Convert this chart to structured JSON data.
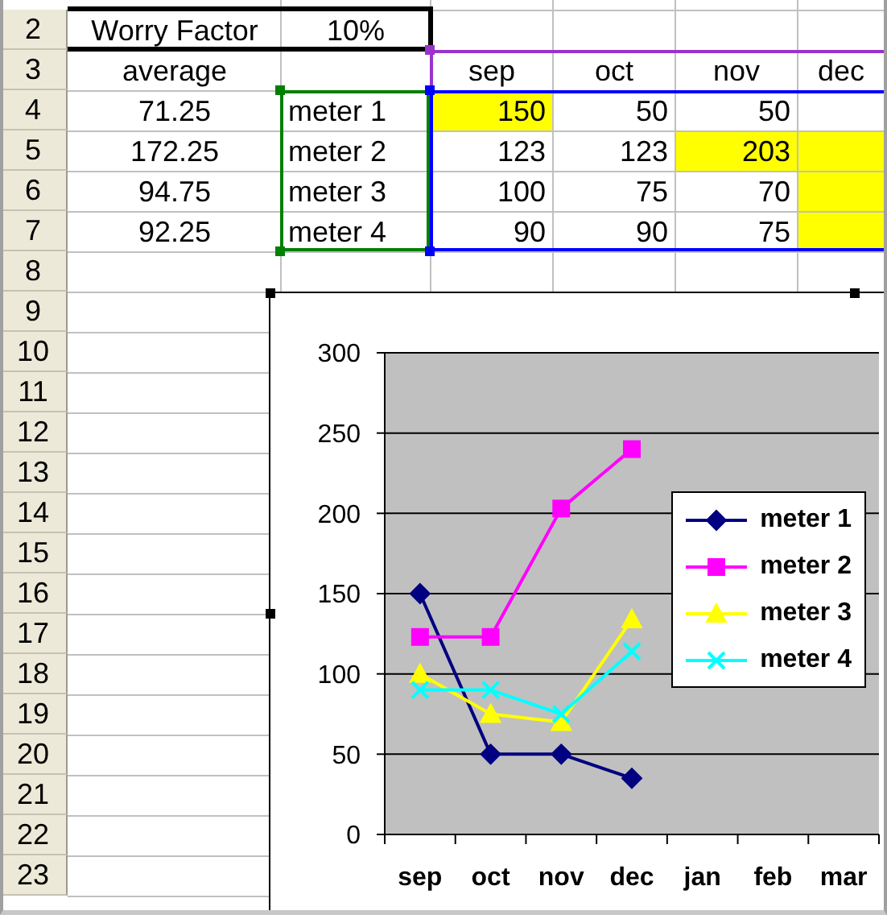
{
  "chart_data": {
    "type": "line",
    "categories": [
      "sep",
      "oct",
      "nov",
      "dec",
      "jan",
      "feb",
      "mar"
    ],
    "series": [
      {
        "name": "meter 1",
        "color": "#000080",
        "marker": "diamond",
        "values": [
          150,
          50,
          50,
          35,
          null,
          null,
          null
        ]
      },
      {
        "name": "meter 2",
        "color": "#ff00ff",
        "marker": "square",
        "values": [
          123,
          123,
          203,
          240,
          null,
          null,
          null
        ]
      },
      {
        "name": "meter 3",
        "color": "#ffff00",
        "marker": "triangle",
        "values": [
          100,
          75,
          70,
          134,
          null,
          null,
          null
        ]
      },
      {
        "name": "meter 4",
        "color": "#00ffff",
        "marker": "cross",
        "values": [
          90,
          90,
          75,
          114,
          null,
          null,
          null
        ]
      }
    ],
    "ylim": [
      0,
      300
    ],
    "yticks": [
      0,
      50,
      100,
      150,
      200,
      250,
      300
    ],
    "grid": "y",
    "legend": "right",
    "annotations": [
      "Worry Factor",
      "10%",
      "average",
      "71.25",
      "150",
      "50",
      "50",
      "172.25",
      "123",
      "123",
      "203",
      "94.75",
      "100",
      "75",
      "70",
      "92.25",
      "90",
      "90",
      "75",
      "2",
      "3",
      "4",
      "5",
      "6",
      "7",
      "8",
      "9",
      "10",
      "11",
      "12",
      "13",
      "14",
      "15",
      "16",
      "17",
      "18",
      "19",
      "20",
      "21",
      "22",
      "23"
    ]
  }
}
